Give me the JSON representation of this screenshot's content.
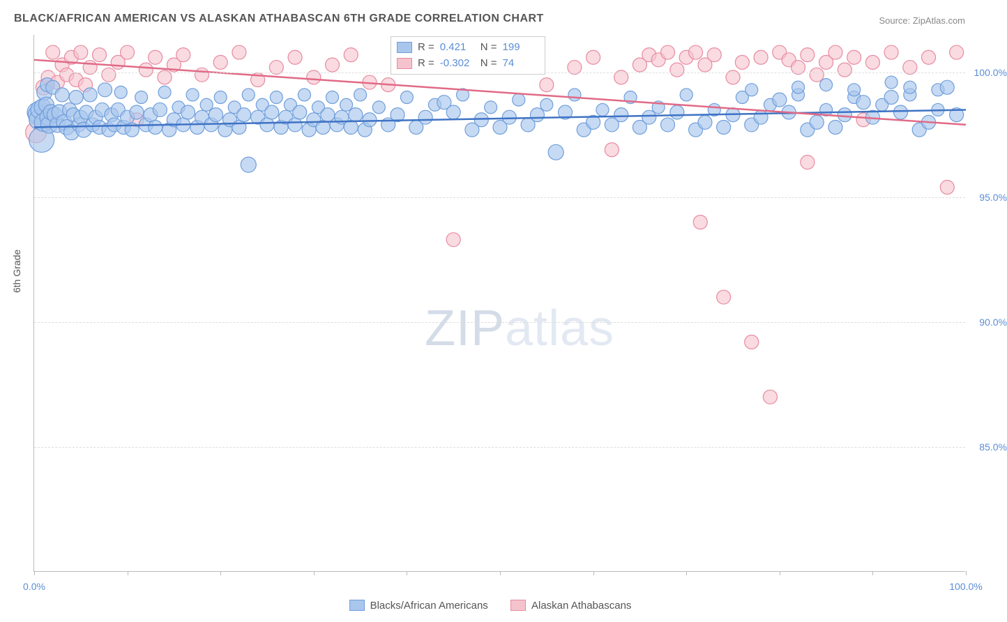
{
  "title": "BLACK/AFRICAN AMERICAN VS ALASKAN ATHABASCAN 6TH GRADE CORRELATION CHART",
  "source": "Source: ZipAtlas.com",
  "y_axis_title": "6th Grade",
  "watermark_zip": "ZIP",
  "watermark_atlas": "atlas",
  "chart": {
    "type": "scatter",
    "xlim": [
      0,
      100
    ],
    "ylim": [
      80,
      101.5
    ],
    "y_ticks": [
      85.0,
      90.0,
      95.0,
      100.0
    ],
    "y_tick_labels": [
      "85.0%",
      "90.0%",
      "95.0%",
      "100.0%"
    ],
    "x_ticks": [
      0,
      10,
      20,
      30,
      40,
      50,
      60,
      70,
      80,
      90,
      100
    ],
    "x_tick_labels_shown": {
      "0": "0.0%",
      "100": "100.0%"
    },
    "background_color": "#ffffff",
    "grid_color": "#dddddd",
    "axis_color": "#bbbbbb",
    "label_color": "#5b8dd6",
    "series": [
      {
        "name": "Blacks/African Americans",
        "fill": "#a9c6ec",
        "stroke": "#6f9edb",
        "fill_opacity": 0.65,
        "trend_color": "#3f73c4",
        "trend": {
          "x1": 0,
          "y1": 97.8,
          "x2": 100,
          "y2": 98.5
        },
        "R": "0.421",
        "N": "199",
        "points": [
          [
            0.3,
            98.4,
            14
          ],
          [
            0.4,
            98.3,
            14
          ],
          [
            0.5,
            98.1,
            14
          ],
          [
            0.6,
            98.5,
            13
          ],
          [
            0.8,
            97.3,
            18
          ],
          [
            0.9,
            98.6,
            12
          ],
          [
            1.0,
            98.0,
            13
          ],
          [
            1.1,
            99.2,
            11
          ],
          [
            1.3,
            98.7,
            11
          ],
          [
            1.4,
            99.5,
            10
          ],
          [
            1.5,
            98.2,
            12
          ],
          [
            1.6,
            97.9,
            12
          ],
          [
            1.8,
            98.4,
            11
          ],
          [
            2.0,
            99.4,
            10
          ],
          [
            2.2,
            98.3,
            11
          ],
          [
            2.5,
            97.9,
            11
          ],
          [
            2.7,
            98.4,
            11
          ],
          [
            3.0,
            99.1,
            10
          ],
          [
            3.2,
            98.0,
            11
          ],
          [
            3.5,
            97.8,
            11
          ],
          [
            3.8,
            98.5,
            10
          ],
          [
            4.0,
            97.6,
            11
          ],
          [
            4.2,
            98.3,
            10
          ],
          [
            4.5,
            99.0,
            10
          ],
          [
            4.8,
            97.9,
            10
          ],
          [
            5.0,
            98.2,
            10
          ],
          [
            5.3,
            97.7,
            11
          ],
          [
            5.6,
            98.4,
            10
          ],
          [
            6.0,
            99.1,
            10
          ],
          [
            6.3,
            97.9,
            10
          ],
          [
            6.6,
            98.2,
            10
          ],
          [
            7.0,
            97.8,
            10
          ],
          [
            7.3,
            98.5,
            10
          ],
          [
            7.6,
            99.3,
            10
          ],
          [
            8.0,
            97.7,
            10
          ],
          [
            8.3,
            98.3,
            10
          ],
          [
            8.6,
            97.9,
            10
          ],
          [
            9.0,
            98.5,
            10
          ],
          [
            9.3,
            99.2,
            9
          ],
          [
            9.6,
            97.8,
            10
          ],
          [
            10.0,
            98.2,
            10
          ],
          [
            10.5,
            97.7,
            10
          ],
          [
            11.0,
            98.4,
            10
          ],
          [
            11.5,
            99.0,
            9
          ],
          [
            12.0,
            97.9,
            10
          ],
          [
            12.5,
            98.3,
            10
          ],
          [
            13.0,
            97.8,
            10
          ],
          [
            13.5,
            98.5,
            10
          ],
          [
            14.0,
            99.2,
            9
          ],
          [
            14.5,
            97.7,
            10
          ],
          [
            15.0,
            98.1,
            10
          ],
          [
            15.5,
            98.6,
            9
          ],
          [
            16.0,
            97.9,
            10
          ],
          [
            16.5,
            98.4,
            10
          ],
          [
            17.0,
            99.1,
            9
          ],
          [
            17.5,
            97.8,
            10
          ],
          [
            18.0,
            98.2,
            10
          ],
          [
            18.5,
            98.7,
            9
          ],
          [
            19.0,
            97.9,
            10
          ],
          [
            19.5,
            98.3,
            10
          ],
          [
            20.0,
            99.0,
            9
          ],
          [
            20.5,
            97.7,
            10
          ],
          [
            21.0,
            98.1,
            10
          ],
          [
            21.5,
            98.6,
            9
          ],
          [
            22.0,
            97.8,
            10
          ],
          [
            22.5,
            98.3,
            10
          ],
          [
            23.0,
            99.1,
            9
          ],
          [
            23.0,
            96.3,
            11
          ],
          [
            24.0,
            98.2,
            10
          ],
          [
            24.5,
            98.7,
            9
          ],
          [
            25.0,
            97.9,
            10
          ],
          [
            25.5,
            98.4,
            10
          ],
          [
            26.0,
            99.0,
            9
          ],
          [
            26.5,
            97.8,
            10
          ],
          [
            27.0,
            98.2,
            10
          ],
          [
            27.5,
            98.7,
            9
          ],
          [
            28.0,
            97.9,
            10
          ],
          [
            28.5,
            98.4,
            10
          ],
          [
            29.0,
            99.1,
            9
          ],
          [
            29.5,
            97.7,
            10
          ],
          [
            30.0,
            98.1,
            10
          ],
          [
            30.5,
            98.6,
            9
          ],
          [
            31.0,
            97.8,
            10
          ],
          [
            31.5,
            98.3,
            10
          ],
          [
            32.0,
            99.0,
            9
          ],
          [
            32.5,
            97.9,
            10
          ],
          [
            33.0,
            98.2,
            10
          ],
          [
            33.5,
            98.7,
            9
          ],
          [
            34.0,
            97.8,
            10
          ],
          [
            34.5,
            98.3,
            10
          ],
          [
            35.0,
            99.1,
            9
          ],
          [
            35.5,
            97.7,
            10
          ],
          [
            36.0,
            98.1,
            10
          ],
          [
            37.0,
            98.6,
            9
          ],
          [
            38.0,
            97.9,
            10
          ],
          [
            39.0,
            98.3,
            10
          ],
          [
            40.0,
            99.0,
            9
          ],
          [
            41.0,
            97.8,
            10
          ],
          [
            42.0,
            98.2,
            10
          ],
          [
            43.0,
            98.7,
            9
          ],
          [
            44.0,
            98.8,
            10
          ],
          [
            45.0,
            98.4,
            10
          ],
          [
            46.0,
            99.1,
            9
          ],
          [
            47.0,
            97.7,
            10
          ],
          [
            48.0,
            98.1,
            10
          ],
          [
            49.0,
            98.6,
            9
          ],
          [
            50.0,
            97.8,
            10
          ],
          [
            51.0,
            98.2,
            10
          ],
          [
            52.0,
            98.9,
            9
          ],
          [
            53.0,
            97.9,
            10
          ],
          [
            54.0,
            98.3,
            10
          ],
          [
            55.0,
            98.7,
            9
          ],
          [
            56.0,
            96.8,
            11
          ],
          [
            57.0,
            98.4,
            10
          ],
          [
            58.0,
            99.1,
            9
          ],
          [
            59.0,
            97.7,
            10
          ],
          [
            60.0,
            98.0,
            10
          ],
          [
            61.0,
            98.5,
            9
          ],
          [
            62.0,
            97.9,
            10
          ],
          [
            63.0,
            98.3,
            10
          ],
          [
            64.0,
            99.0,
            9
          ],
          [
            65.0,
            97.8,
            10
          ],
          [
            66.0,
            98.2,
            10
          ],
          [
            67.0,
            98.6,
            9
          ],
          [
            68.0,
            97.9,
            10
          ],
          [
            69.0,
            98.4,
            10
          ],
          [
            70.0,
            99.1,
            9
          ],
          [
            71.0,
            97.7,
            10
          ],
          [
            72.0,
            98.0,
            10
          ],
          [
            73.0,
            98.5,
            9
          ],
          [
            74.0,
            97.8,
            10
          ],
          [
            75.0,
            98.3,
            10
          ],
          [
            76.0,
            99.0,
            9
          ],
          [
            77.0,
            97.9,
            10
          ],
          [
            77.0,
            99.3,
            9
          ],
          [
            78.0,
            98.2,
            10
          ],
          [
            79.0,
            98.7,
            9
          ],
          [
            80.0,
            98.9,
            10
          ],
          [
            81.0,
            98.4,
            10
          ],
          [
            82.0,
            99.1,
            9
          ],
          [
            82.0,
            99.4,
            9
          ],
          [
            83.0,
            97.7,
            10
          ],
          [
            84.0,
            98.0,
            10
          ],
          [
            85.0,
            98.5,
            9
          ],
          [
            85.0,
            99.5,
            9
          ],
          [
            86.0,
            97.8,
            10
          ],
          [
            87.0,
            98.3,
            10
          ],
          [
            88.0,
            99.0,
            9
          ],
          [
            88.0,
            99.3,
            9
          ],
          [
            89.0,
            98.8,
            10
          ],
          [
            90.0,
            98.2,
            10
          ],
          [
            91.0,
            98.7,
            9
          ],
          [
            92.0,
            99.0,
            10
          ],
          [
            92.0,
            99.6,
            9
          ],
          [
            93.0,
            98.4,
            10
          ],
          [
            94.0,
            99.1,
            9
          ],
          [
            94.0,
            99.4,
            9
          ],
          [
            95.0,
            97.7,
            10
          ],
          [
            96.0,
            98.0,
            10
          ],
          [
            97.0,
            98.5,
            9
          ],
          [
            97.0,
            99.3,
            9
          ],
          [
            98.0,
            99.4,
            10
          ],
          [
            99.0,
            98.3,
            10
          ]
        ]
      },
      {
        "name": "Alaskan Athabascans",
        "fill": "#f5c3cd",
        "stroke": "#e88aa0",
        "fill_opacity": 0.6,
        "trend_color": "#e16a86",
        "trend": {
          "x1": 0,
          "y1": 100.5,
          "x2": 100,
          "y2": 97.9
        },
        "R": "-0.302",
        "N": "74",
        "points": [
          [
            0.2,
            97.6,
            15
          ],
          [
            1.0,
            99.4,
            11
          ],
          [
            1.5,
            99.8,
            10
          ],
          [
            2.0,
            100.8,
            10
          ],
          [
            2.5,
            99.6,
            10
          ],
          [
            3.0,
            100.3,
            10
          ],
          [
            3.5,
            99.9,
            10
          ],
          [
            4.0,
            100.6,
            10
          ],
          [
            4.5,
            99.7,
            10
          ],
          [
            5.0,
            100.8,
            10
          ],
          [
            5.5,
            99.5,
            10
          ],
          [
            6.0,
            100.2,
            10
          ],
          [
            7.0,
            100.7,
            10
          ],
          [
            8.0,
            99.9,
            10
          ],
          [
            9.0,
            100.4,
            10
          ],
          [
            10.0,
            100.8,
            10
          ],
          [
            11.0,
            98.1,
            10
          ],
          [
            12.0,
            100.1,
            10
          ],
          [
            13.0,
            100.6,
            10
          ],
          [
            14.0,
            99.8,
            10
          ],
          [
            15.0,
            100.3,
            10
          ],
          [
            16.0,
            100.7,
            10
          ],
          [
            18.0,
            99.9,
            10
          ],
          [
            20.0,
            100.4,
            10
          ],
          [
            22.0,
            100.8,
            10
          ],
          [
            24.0,
            99.7,
            10
          ],
          [
            26.0,
            100.2,
            10
          ],
          [
            28.0,
            100.6,
            10
          ],
          [
            30.0,
            99.8,
            10
          ],
          [
            32.0,
            100.3,
            10
          ],
          [
            34.0,
            100.7,
            10
          ],
          [
            36.0,
            99.6,
            10
          ],
          [
            38.0,
            99.5,
            10
          ],
          [
            40.0,
            100.5,
            10
          ],
          [
            45.0,
            93.3,
            10
          ],
          [
            50.0,
            100.7,
            10
          ],
          [
            55.0,
            99.5,
            10
          ],
          [
            58.0,
            100.2,
            10
          ],
          [
            60.0,
            100.6,
            10
          ],
          [
            62.0,
            96.9,
            10
          ],
          [
            63.0,
            99.8,
            10
          ],
          [
            65.0,
            100.3,
            10
          ],
          [
            66.0,
            100.7,
            10
          ],
          [
            67.0,
            100.5,
            10
          ],
          [
            68.0,
            100.8,
            10
          ],
          [
            69.0,
            100.1,
            10
          ],
          [
            70.0,
            100.6,
            10
          ],
          [
            71.0,
            100.8,
            10
          ],
          [
            71.5,
            94.0,
            10
          ],
          [
            72.0,
            100.3,
            10
          ],
          [
            73.0,
            100.7,
            10
          ],
          [
            74.0,
            91.0,
            10
          ],
          [
            75.0,
            99.8,
            10
          ],
          [
            76.0,
            100.4,
            10
          ],
          [
            77.0,
            89.2,
            10
          ],
          [
            78.0,
            100.6,
            10
          ],
          [
            79.0,
            87.0,
            10
          ],
          [
            80.0,
            100.8,
            10
          ],
          [
            81.0,
            100.5,
            10
          ],
          [
            82.0,
            100.2,
            10
          ],
          [
            83.0,
            100.7,
            10
          ],
          [
            83.0,
            96.4,
            10
          ],
          [
            84.0,
            99.9,
            10
          ],
          [
            85.0,
            100.4,
            10
          ],
          [
            86.0,
            100.8,
            10
          ],
          [
            87.0,
            100.1,
            10
          ],
          [
            88.0,
            100.6,
            10
          ],
          [
            89.0,
            98.1,
            10
          ],
          [
            90.0,
            100.4,
            10
          ],
          [
            92.0,
            100.8,
            10
          ],
          [
            94.0,
            100.2,
            10
          ],
          [
            96.0,
            100.6,
            10
          ],
          [
            98.0,
            95.4,
            10
          ],
          [
            99.0,
            100.8,
            10
          ]
        ]
      }
    ]
  },
  "legend_labels": {
    "series1": "Blacks/African Americans",
    "series2": "Alaskan Athabascans",
    "R_label": "R =",
    "N_label": "N ="
  }
}
